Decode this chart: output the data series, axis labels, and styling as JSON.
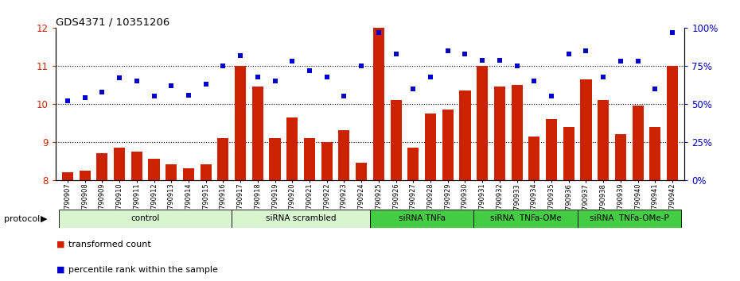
{
  "title": "GDS4371 / 10351206",
  "samples": [
    "GSM790907",
    "GSM790908",
    "GSM790909",
    "GSM790910",
    "GSM790911",
    "GSM790912",
    "GSM790913",
    "GSM790914",
    "GSM790915",
    "GSM790916",
    "GSM790917",
    "GSM790918",
    "GSM790919",
    "GSM790920",
    "GSM790921",
    "GSM790922",
    "GSM790923",
    "GSM790924",
    "GSM790925",
    "GSM790926",
    "GSM790927",
    "GSM790928",
    "GSM790929",
    "GSM790930",
    "GSM790931",
    "GSM790932",
    "GSM790933",
    "GSM790934",
    "GSM790935",
    "GSM790936",
    "GSM790937",
    "GSM790938",
    "GSM790939",
    "GSM790940",
    "GSM790941",
    "GSM790942"
  ],
  "bar_values": [
    8.2,
    8.25,
    8.7,
    8.85,
    8.75,
    8.55,
    8.4,
    8.3,
    8.4,
    9.1,
    11.0,
    10.45,
    9.1,
    9.65,
    9.1,
    9.0,
    9.3,
    8.45,
    12.0,
    10.1,
    8.85,
    9.75,
    9.85,
    10.35,
    11.0,
    10.45,
    10.5,
    9.15,
    9.6,
    9.4,
    10.65,
    10.1,
    9.2,
    9.95,
    9.4,
    11.0
  ],
  "scatter_percentile": [
    52,
    54,
    58,
    67,
    65,
    55,
    62,
    56,
    63,
    75,
    82,
    68,
    65,
    78,
    72,
    68,
    55,
    75,
    97,
    83,
    60,
    68,
    85,
    83,
    79,
    79,
    75,
    65,
    55,
    83,
    85,
    68,
    78,
    78,
    60,
    97
  ],
  "groups": [
    {
      "label": "control",
      "start": 0,
      "end": 9,
      "light": true
    },
    {
      "label": "siRNA scrambled",
      "start": 10,
      "end": 17,
      "light": true
    },
    {
      "label": "siRNA TNFa",
      "start": 18,
      "end": 23,
      "light": false
    },
    {
      "label": "siRNA  TNFa-OMe",
      "start": 24,
      "end": 29,
      "light": false
    },
    {
      "label": "siRNA  TNFa-OMe-P",
      "start": 30,
      "end": 35,
      "light": false
    }
  ],
  "ylim_left": [
    8,
    12
  ],
  "yticks_left": [
    8,
    9,
    10,
    11,
    12
  ],
  "ylim_right": [
    0,
    100
  ],
  "yticks_right": [
    0,
    25,
    50,
    75,
    100
  ],
  "bar_color": "#cc2200",
  "scatter_color": "#0000cc",
  "light_green": "#d8f5d0",
  "dark_green": "#44cc44",
  "legend_bar_label": "transformed count",
  "legend_scatter_label": "percentile rank within the sample",
  "protocol_label": "protocol"
}
